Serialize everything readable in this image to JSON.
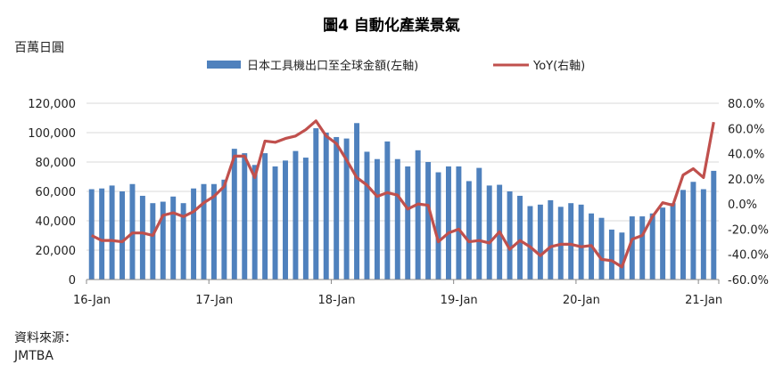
{
  "chart_data": {
    "type": "bar+line",
    "title": "圖4 自動化產業景氣",
    "ylabel_left": "百萬日圓",
    "source_label": "資料來源：",
    "source": "JMTBA",
    "legend": [
      "日本工具機出口至全球金額(左軸)",
      "YoY(右軸)"
    ],
    "x_tick_labels": [
      "16-Jan",
      "17-Jan",
      "18-Jan",
      "19-Jan",
      "20-Jan",
      "21-Jan"
    ],
    "y_left_ticks": [
      "0",
      "20,000",
      "40,000",
      "60,000",
      "80,000",
      "100,000",
      "120,000"
    ],
    "y_right_ticks": [
      "-60.0%",
      "-40.0%",
      "-20.0%",
      "0.0%",
      "20.0%",
      "40.0%",
      "60.0%",
      "80.0%"
    ],
    "ylim_left": [
      0,
      120000
    ],
    "ylim_right": [
      -60,
      80
    ],
    "colors": {
      "bar": "#4f81bd",
      "line": "#c0504d"
    },
    "series": [
      {
        "name": "日本工具機出口至全球金額(左軸)",
        "kind": "bar",
        "values": [
          61500,
          62000,
          64000,
          60000,
          65000,
          57000,
          52000,
          53000,
          56500,
          52000,
          62000,
          65000,
          65000,
          68000,
          89000,
          86000,
          78000,
          86000,
          77000,
          81000,
          87500,
          83000,
          103000,
          100000,
          97000,
          96000,
          106500,
          87000,
          82000,
          94000,
          82000,
          77000,
          88000,
          80000,
          73000,
          77000,
          77000,
          67000,
          76000,
          64000,
          64500,
          60000,
          57000,
          50000,
          51000,
          54000,
          49500,
          52000,
          51000,
          45000,
          42000,
          34000,
          32000,
          43000,
          43000,
          45000,
          49000,
          52000,
          61000,
          66500,
          61500,
          74000
        ]
      },
      {
        "name": "YoY(右軸)",
        "kind": "line",
        "values": [
          -25,
          -29,
          -29,
          -30,
          -23,
          -23,
          -25,
          -9,
          -7,
          -10,
          -6,
          1,
          6,
          14,
          38,
          38,
          21,
          50,
          49,
          52,
          54,
          59,
          66,
          54,
          48,
          35,
          21,
          15,
          6,
          9,
          7,
          -4,
          0,
          -1,
          -30,
          -23,
          -20,
          -30,
          -29,
          -31,
          -22,
          -36,
          -29,
          -34,
          -41,
          -34,
          -32,
          -32,
          -34,
          -33,
          -44,
          -45,
          -50,
          -28,
          -25,
          -10,
          1,
          -1,
          23,
          28,
          21,
          65
        ]
      }
    ]
  }
}
